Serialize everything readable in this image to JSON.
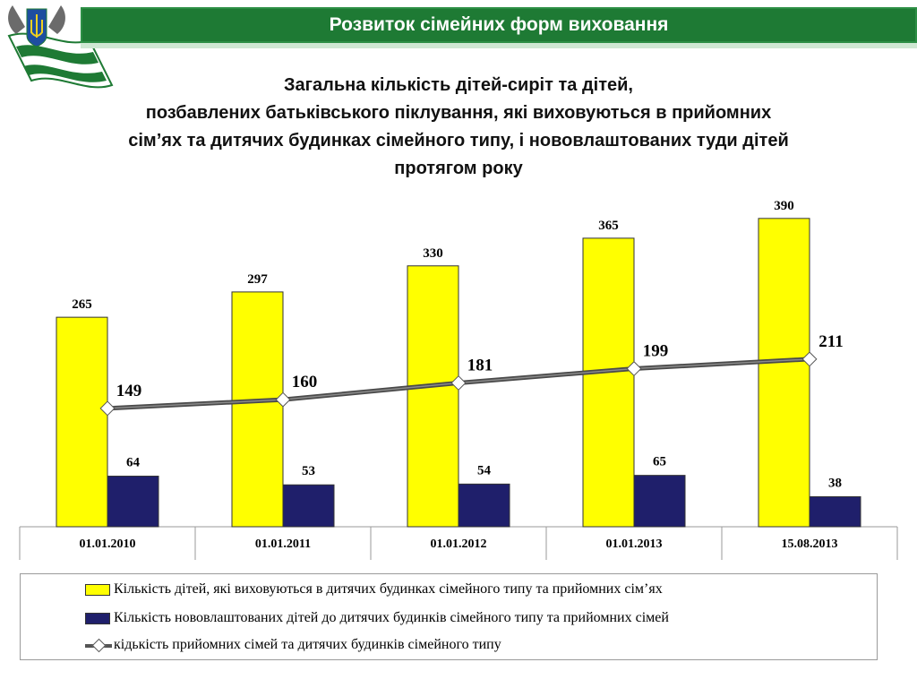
{
  "header": {
    "title": "Розвиток сімейних форм виховання",
    "colors": {
      "bar": "#1e7a34",
      "stripe": "#cfe8d3"
    }
  },
  "emblem": {
    "icon": "ukraine-coat-of-arms-flag-icon"
  },
  "chart_title": {
    "line1": "Загальна кількість дітей-сиріт та дітей,",
    "line2": "позбавлених батьківського піклування, які виховуються в прийомних",
    "line3": "сім’ях та дитячих будинках сімейного типу, і нововлаштованих туди дітей",
    "line4": "протягом року"
  },
  "chart_data": {
    "type": "bar",
    "categories": [
      "01.01.2010",
      "01.01.2011",
      "01.01.2012",
      "01.01.2013",
      "15.08.2013"
    ],
    "series": [
      {
        "name": "Кількість дітей, які виховуються в дитячих будинках сімейного типу та прийомних сім’ях",
        "type": "bar",
        "color": "#ffff00",
        "values": [
          265,
          297,
          330,
          365,
          390
        ]
      },
      {
        "name": "Кількість  нововлаштованих дітей до дитячих будинків сімейного типу та прийомних сімей",
        "type": "bar",
        "color": "#1f1f6b",
        "values": [
          64,
          53,
          54,
          65,
          38
        ]
      },
      {
        "name": "кідькість прийомних сімей та дитячих будинків сімейного типу",
        "type": "line",
        "color": "#555555",
        "values": [
          149,
          160,
          181,
          199,
          211
        ]
      }
    ],
    "ylim": [
      0,
      400
    ],
    "grid": false,
    "legend_position": "bottom"
  }
}
